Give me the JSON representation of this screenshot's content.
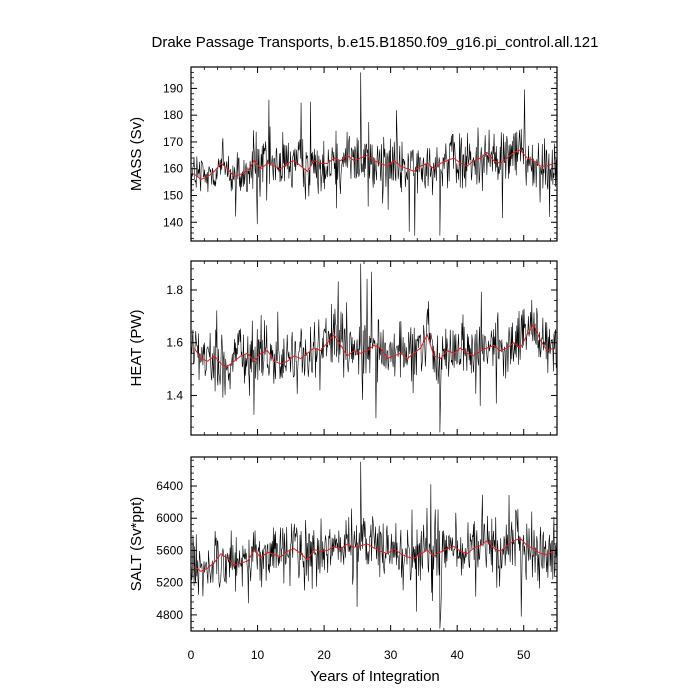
{
  "chart_data": {
    "type": "line",
    "title": "Drake Passage Transports, b.e15.B1850.f09_g16.pi_control.all.121",
    "xlabel": "Years of Integration",
    "xlim": [
      0,
      55
    ],
    "x_ticks": [
      0,
      10,
      20,
      30,
      40,
      50
    ],
    "series_colors": {
      "monthly": "#000000",
      "annual_mean": "#e02020"
    },
    "grid": false,
    "panels": [
      {
        "ylabel": "MASS (Sv)",
        "ylim": [
          133,
          198
        ],
        "y_ticks": [
          140,
          150,
          160,
          170,
          180,
          190
        ],
        "monthly_stats": {
          "mean": 161.5,
          "amplitude": 11,
          "min": 135,
          "max": 196
        },
        "annual_mean": {
          "x": [
            0.5,
            1.5,
            2.5,
            3.5,
            4.5,
            5.5,
            6.5,
            7.5,
            8.5,
            9.5,
            10.5,
            11.5,
            12.5,
            13.5,
            14.5,
            15.5,
            16.5,
            17.5,
            18.5,
            19.5,
            20.5,
            21.5,
            22.5,
            23.5,
            24.5,
            25.5,
            26.5,
            27.5,
            28.5,
            29.5,
            30.5,
            31.5,
            32.5,
            33.5,
            34.5,
            35.5,
            36.5,
            37.5,
            38.5,
            39.5,
            40.5,
            41.5,
            42.5,
            43.5,
            44.5,
            45.5,
            46.5,
            47.5,
            48.5,
            49.5,
            50.5,
            51.5,
            52.5,
            53.5,
            54.5
          ],
          "y": [
            158,
            156,
            157,
            159,
            162,
            160,
            157,
            158,
            159,
            163,
            160,
            162,
            161,
            160,
            162,
            163,
            161,
            159,
            163,
            162,
            162,
            164,
            163,
            165,
            163,
            164,
            165,
            163,
            162,
            161,
            163,
            161,
            160,
            159,
            161,
            162,
            160,
            162,
            163,
            164,
            162,
            161,
            163,
            164,
            166,
            163,
            162,
            164,
            166,
            167,
            164,
            163,
            161,
            161,
            162
          ]
        }
      },
      {
        "ylabel": "HEAT (PW)",
        "ylim": [
          1.25,
          1.91
        ],
        "y_ticks": [
          1.4,
          1.6,
          1.8
        ],
        "y_tick_labels": [
          "1.4",
          "1.6",
          "1.8"
        ],
        "monthly_stats": {
          "mean": 1.565,
          "amplitude": 0.11,
          "min": 1.26,
          "max": 1.9
        },
        "annual_mean": {
          "x": [
            0.5,
            1.5,
            2.5,
            3.5,
            4.5,
            5.5,
            6.5,
            7.5,
            8.5,
            9.5,
            10.5,
            11.5,
            12.5,
            13.5,
            14.5,
            15.5,
            16.5,
            17.5,
            18.5,
            19.5,
            20.5,
            21.5,
            22.5,
            23.5,
            24.5,
            25.5,
            26.5,
            27.5,
            28.5,
            29.5,
            30.5,
            31.5,
            32.5,
            33.5,
            34.5,
            35.5,
            36.5,
            37.5,
            38.5,
            39.5,
            40.5,
            41.5,
            42.5,
            43.5,
            44.5,
            45.5,
            46.5,
            47.5,
            48.5,
            49.5,
            50.5,
            51.5,
            52.5,
            53.5,
            54.5
          ],
          "y": [
            1.58,
            1.54,
            1.53,
            1.55,
            1.52,
            1.51,
            1.53,
            1.55,
            1.56,
            1.53,
            1.56,
            1.57,
            1.53,
            1.52,
            1.53,
            1.55,
            1.54,
            1.56,
            1.58,
            1.57,
            1.6,
            1.63,
            1.59,
            1.55,
            1.57,
            1.56,
            1.57,
            1.59,
            1.58,
            1.54,
            1.55,
            1.56,
            1.54,
            1.56,
            1.58,
            1.63,
            1.55,
            1.54,
            1.57,
            1.56,
            1.58,
            1.56,
            1.55,
            1.57,
            1.58,
            1.59,
            1.57,
            1.58,
            1.6,
            1.58,
            1.63,
            1.67,
            1.61,
            1.57,
            1.58
          ]
        }
      },
      {
        "ylabel": "SALT (Sv*ppt)",
        "ylim": [
          4600,
          6760
        ],
        "y_ticks": [
          4800,
          5200,
          5600,
          6000,
          6400
        ],
        "monthly_stats": {
          "mean": 5560,
          "amplitude": 380,
          "min": 4630,
          "max": 6700
        },
        "annual_mean": {
          "x": [
            0.5,
            1.5,
            2.5,
            3.5,
            4.5,
            5.5,
            6.5,
            7.5,
            8.5,
            9.5,
            10.5,
            11.5,
            12.5,
            13.5,
            14.5,
            15.5,
            16.5,
            17.5,
            18.5,
            19.5,
            20.5,
            21.5,
            22.5,
            23.5,
            24.5,
            25.5,
            26.5,
            27.5,
            28.5,
            29.5,
            30.5,
            31.5,
            32.5,
            33.5,
            34.5,
            35.5,
            36.5,
            37.5,
            38.5,
            39.5,
            40.5,
            41.5,
            42.5,
            43.5,
            44.5,
            45.5,
            46.5,
            47.5,
            48.5,
            49.5,
            50.5,
            51.5,
            52.5,
            53.5,
            54.5
          ],
          "y": [
            5400,
            5340,
            5380,
            5450,
            5560,
            5500,
            5420,
            5440,
            5470,
            5600,
            5510,
            5580,
            5550,
            5520,
            5590,
            5620,
            5560,
            5480,
            5610,
            5590,
            5600,
            5650,
            5620,
            5680,
            5640,
            5660,
            5680,
            5630,
            5590,
            5560,
            5620,
            5560,
            5520,
            5500,
            5560,
            5600,
            5530,
            5580,
            5620,
            5650,
            5590,
            5560,
            5630,
            5660,
            5720,
            5630,
            5590,
            5660,
            5720,
            5750,
            5660,
            5620,
            5560,
            5550,
            5590
          ]
        }
      }
    ]
  }
}
